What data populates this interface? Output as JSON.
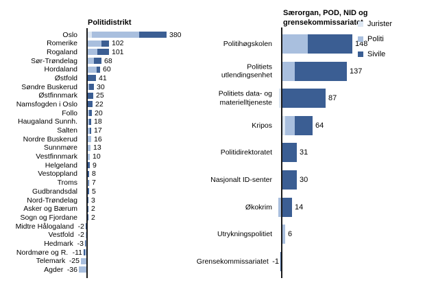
{
  "palette": {
    "jurister": "#dce6f2",
    "politi": "#a9bfde",
    "sivile": "#3b5e93",
    "axis": "#1a1a1a",
    "text": "#000000",
    "background": "#ffffff"
  },
  "legend": {
    "entries": [
      {
        "label": "Jurister",
        "series": "jurister"
      },
      {
        "label": "Politi",
        "series": "politi"
      },
      {
        "label": "Sivile",
        "series": "sivile"
      }
    ]
  },
  "chart_data": [
    {
      "type": "bar",
      "orientation": "horizontal",
      "stacked": true,
      "title": "Politidistrikt",
      "series_names": [
        "Jurister",
        "Politi",
        "Sivile"
      ],
      "rows": [
        {
          "category": "Oslo",
          "total": 380,
          "jurister": 20,
          "politi": 228,
          "sivile": 132
        },
        {
          "category": "Romerike",
          "total": 102,
          "politi": 67,
          "sivile": 35
        },
        {
          "category": "Rogaland",
          "total": 101,
          "politi": 45,
          "sivile": 56
        },
        {
          "category": "Sør-Trøndelag",
          "total": 68,
          "politi": 30,
          "sivile": 38
        },
        {
          "category": "Hordaland",
          "total": 60,
          "politi": 42,
          "sivile": 18
        },
        {
          "category": "Østfold",
          "total": 41,
          "sivile": 41
        },
        {
          "category": "Søndre Buskerud",
          "total": 30,
          "politi": 8,
          "sivile": 22
        },
        {
          "category": "Østfinnmark",
          "total": 25,
          "sivile": 25
        },
        {
          "category": "Namsfogden i Oslo",
          "total": 22,
          "sivile": 22
        },
        {
          "category": "Follo",
          "total": 20,
          "politi": 6,
          "sivile": 14
        },
        {
          "category": "Haugaland Sunnh.",
          "total": 18,
          "politi": 8,
          "sivile": 10
        },
        {
          "category": "Salten",
          "total": 17,
          "politi": 9,
          "sivile": 8
        },
        {
          "category": "Nordre Buskerud",
          "total": 16,
          "politi": 16
        },
        {
          "category": "Sunnmøre",
          "total": 13,
          "politi": 13
        },
        {
          "category": "Vestfinnmark",
          "total": 10,
          "politi": 10
        },
        {
          "category": "Helgeland",
          "total": 9,
          "sivile": 9
        },
        {
          "category": "Vestoppland",
          "total": 8,
          "sivile": 8
        },
        {
          "category": "Troms",
          "total": 7,
          "politi": 4,
          "sivile": 3
        },
        {
          "category": "Gudbrandsdal",
          "total": 5,
          "sivile": 5
        },
        {
          "category": "Nord-Trøndelag",
          "total": 3,
          "sivile": 3
        },
        {
          "category": "Asker og Bærum",
          "total": 2,
          "sivile": 2
        },
        {
          "category": "Sogn og Fjordane",
          "total": 2,
          "sivile": 2
        },
        {
          "category": "Midtre Hålogaland",
          "total": -2,
          "sivile": -2
        },
        {
          "category": "Vestfold",
          "total": -2,
          "politi": -2
        },
        {
          "category": "Hedmark",
          "total": -3,
          "politi": -2,
          "sivile": -1
        },
        {
          "category": "Nordmøre og R.",
          "total": -11,
          "politi": -5,
          "sivile": -6
        },
        {
          "category": "Telemark",
          "total": -25,
          "politi": -25
        },
        {
          "category": "Agder",
          "total": -36,
          "politi": -36
        }
      ]
    },
    {
      "type": "bar",
      "orientation": "horizontal",
      "stacked": true,
      "title": "Særorgan, POD, NID og\ngrensekommissariatet",
      "series_names": [
        "Jurister",
        "Politi",
        "Sivile"
      ],
      "legend_position": "top-right",
      "rows": [
        {
          "category": "Politihøgskolen",
          "total": 148,
          "politi": 53,
          "sivile": 95
        },
        {
          "category": "Politiets\nutlendingsenhet",
          "total": 137,
          "politi": 26,
          "sivile": 111
        },
        {
          "category": "Politiets data- og\nmaterielltjeneste",
          "total": 87,
          "jurister": -5,
          "sivile": 92
        },
        {
          "category": "Kripos",
          "total": 64,
          "jurister": 6,
          "politi": 20,
          "sivile": 38
        },
        {
          "category": "Politidirektoratet",
          "total": 31,
          "sivile": 31
        },
        {
          "category": "Nasjonalt ID-senter",
          "total": 30,
          "sivile": 30
        },
        {
          "category": "Økokrim",
          "total": 14,
          "politi": -6,
          "sivile": 20
        },
        {
          "category": "Utrykningspolitiet",
          "total": 6,
          "politi": 6
        },
        {
          "category": "Grensekommissariatet",
          "total": -1,
          "sivile": -1
        }
      ]
    }
  ]
}
